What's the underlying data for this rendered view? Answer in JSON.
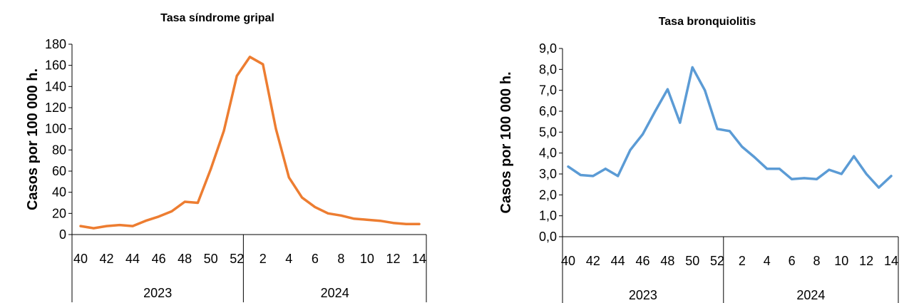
{
  "chart_data": [
    {
      "type": "line",
      "title": "Tasa síndrome gripal",
      "ylabel": "Casos por 100 000 h.",
      "xlabel": "",
      "ylim": [
        0,
        180
      ],
      "y_ticks": [
        "0",
        "20",
        "40",
        "60",
        "80",
        "100",
        "120",
        "140",
        "160",
        "180"
      ],
      "x_ticks": [
        "40",
        "42",
        "44",
        "46",
        "48",
        "50",
        "52",
        "2",
        "4",
        "6",
        "8",
        "10",
        "12",
        "14"
      ],
      "year_groups": [
        "2023",
        "2024"
      ],
      "weeks": [
        40,
        41,
        42,
        43,
        44,
        45,
        46,
        47,
        48,
        49,
        50,
        51,
        52,
        1,
        2,
        3,
        4,
        5,
        6,
        7,
        8,
        9,
        10,
        11,
        12,
        13,
        14
      ],
      "color": "#ed7d31",
      "series": [
        {
          "values": [
            8,
            6,
            8,
            9,
            8,
            13,
            17,
            22,
            31,
            30,
            62,
            98,
            150,
            168,
            161,
            100,
            54,
            35,
            26,
            20,
            18,
            15,
            14,
            13,
            11,
            10,
            10
          ]
        }
      ],
      "grid": false
    },
    {
      "type": "line",
      "title": "Tasa bronquiolitis",
      "ylabel": "Casos por 100 000 h.",
      "xlabel": "",
      "ylim": [
        0,
        9
      ],
      "y_ticks": [
        "0,0",
        "1,0",
        "2,0",
        "3,0",
        "4,0",
        "5,0",
        "6,0",
        "7,0",
        "8,0",
        "9,0"
      ],
      "x_ticks": [
        "40",
        "42",
        "44",
        "46",
        "48",
        "50",
        "52",
        "2",
        "4",
        "6",
        "8",
        "10",
        "12",
        "14"
      ],
      "year_groups": [
        "2023",
        "2024"
      ],
      "weeks": [
        40,
        41,
        42,
        43,
        44,
        45,
        46,
        47,
        48,
        49,
        50,
        51,
        52,
        1,
        2,
        3,
        4,
        5,
        6,
        7,
        8,
        9,
        10,
        11,
        12,
        13,
        14
      ],
      "color": "#5b9bd5",
      "series": [
        {
          "values": [
            3.35,
            2.95,
            2.9,
            3.25,
            2.9,
            4.15,
            4.9,
            6.0,
            7.05,
            5.45,
            8.1,
            7.0,
            5.15,
            5.05,
            4.3,
            3.8,
            3.25,
            3.25,
            2.75,
            2.8,
            2.75,
            3.2,
            3.0,
            3.85,
            3.0,
            2.35,
            2.9
          ]
        }
      ],
      "grid": false
    }
  ]
}
